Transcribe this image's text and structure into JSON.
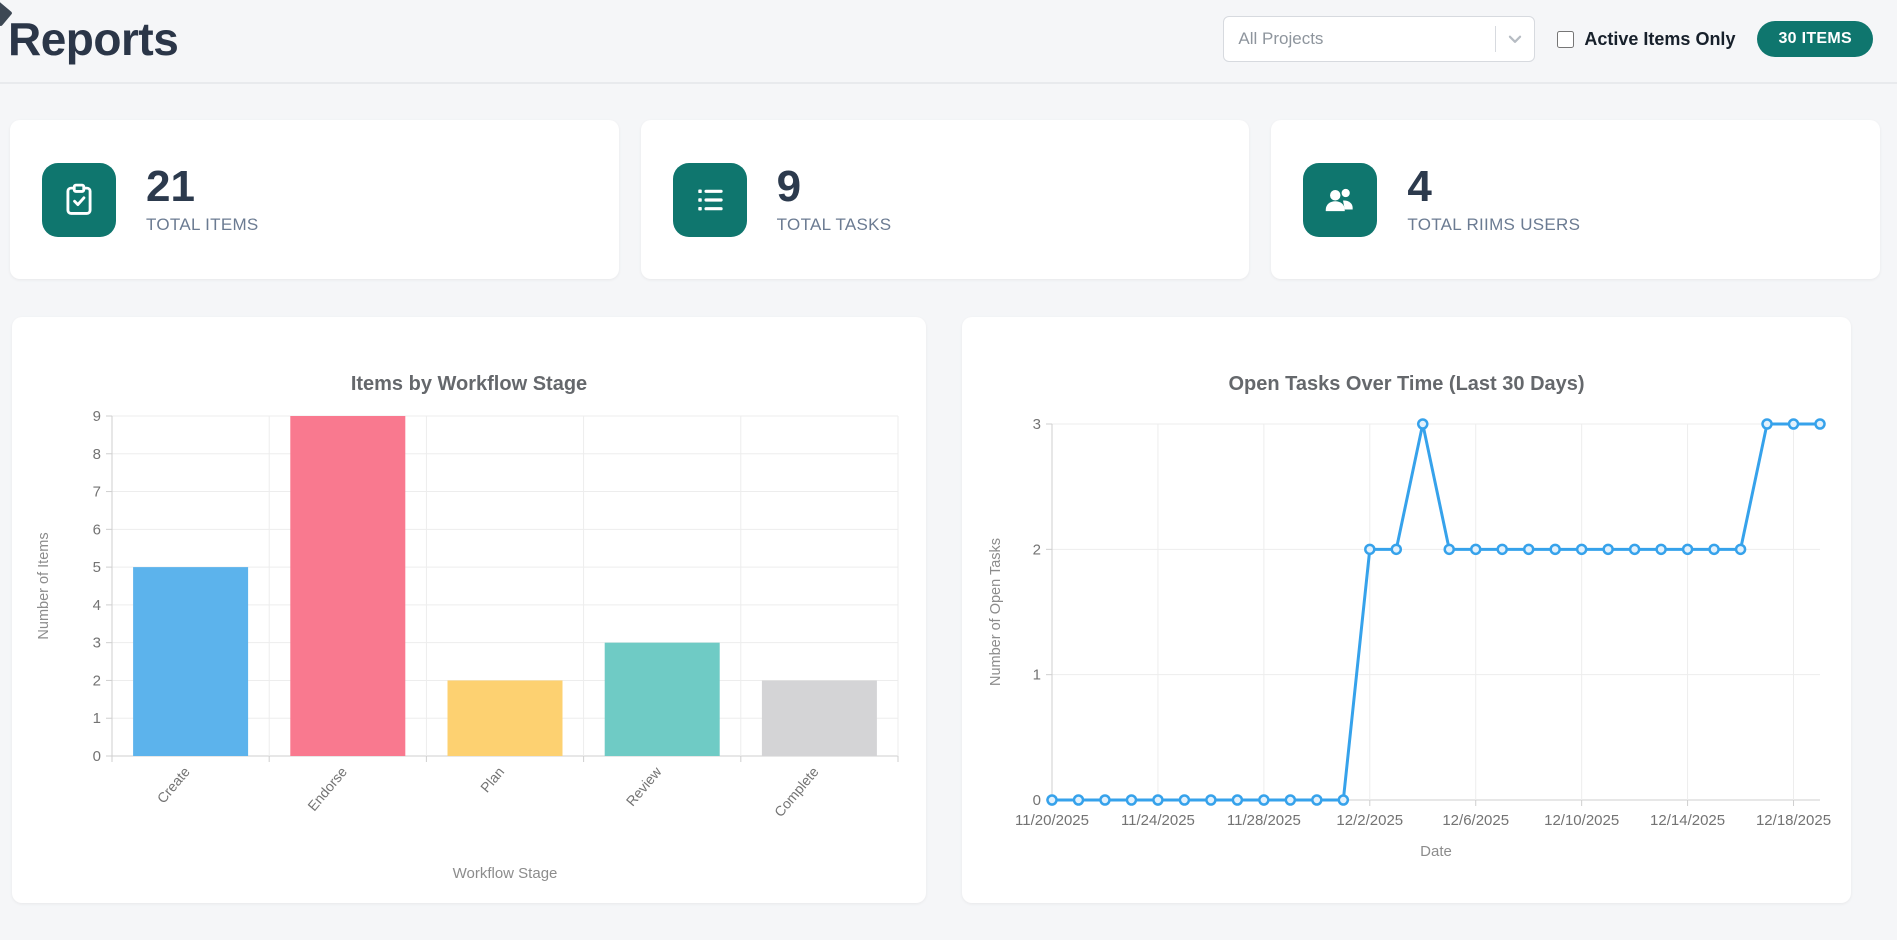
{
  "page": {
    "title": "Reports"
  },
  "header": {
    "project_filter": {
      "placeholder": "All Projects"
    },
    "active_only_label": "Active Items Only",
    "items_badge": "30 ITEMS"
  },
  "stats": [
    {
      "icon": "clipboard-check-icon",
      "value": "21",
      "label": "TOTAL ITEMS"
    },
    {
      "icon": "list-icon",
      "value": "9",
      "label": "TOTAL TASKS"
    },
    {
      "icon": "users-icon",
      "value": "4",
      "label": "TOTAL RIIMS USERS"
    }
  ],
  "colors": {
    "accent_teal": "#0f766e",
    "title_dark": "#2b3648",
    "stat_number": "#2c3a4d",
    "stat_label": "#6b7b92",
    "chart_title_gray": "#65686c",
    "line_blue": "#36a2eb"
  },
  "chart_data": [
    {
      "type": "bar",
      "title": "Items by Workflow Stage",
      "categories": [
        "Create",
        "Endorse",
        "Plan",
        "Review",
        "Complete"
      ],
      "values": [
        5,
        9,
        2,
        3,
        2
      ],
      "bar_colors": [
        "#5cb3ec",
        "#f9798f",
        "#fdd171",
        "#6fcbc5",
        "#d4d4d6"
      ],
      "xlabel": "Workflow Stage",
      "ylabel": "Number of Items",
      "ylim": [
        0,
        9
      ],
      "ytick_step": 1,
      "grid": true,
      "legend": "none"
    },
    {
      "type": "line",
      "title": "Open Tasks Over Time (Last 30 Days)",
      "x": [
        "11/20/2025",
        "11/21/2025",
        "11/22/2025",
        "11/23/2025",
        "11/24/2025",
        "11/25/2025",
        "11/26/2025",
        "11/27/2025",
        "11/28/2025",
        "11/29/2025",
        "11/30/2025",
        "12/1/2025",
        "12/2/2025",
        "12/3/2025",
        "12/4/2025",
        "12/5/2025",
        "12/6/2025",
        "12/7/2025",
        "12/8/2025",
        "12/9/2025",
        "12/10/2025",
        "12/11/2025",
        "12/12/2025",
        "12/13/2025",
        "12/14/2025",
        "12/15/2025",
        "12/16/2025",
        "12/17/2025",
        "12/18/2025",
        "12/19/2025"
      ],
      "values": [
        0,
        0,
        0,
        0,
        0,
        0,
        0,
        0,
        0,
        0,
        0,
        0,
        2,
        2,
        3,
        2,
        2,
        2,
        2,
        2,
        2,
        2,
        2,
        2,
        2,
        2,
        2,
        3,
        3,
        3
      ],
      "xtick_labels": [
        "11/20/2025",
        "11/24/2025",
        "11/28/2025",
        "12/2/2025",
        "12/6/2025",
        "12/10/2025",
        "12/14/2025",
        "12/18/2025"
      ],
      "xtick_every": 4,
      "xlabel": "Date",
      "ylabel": "Number of Open Tasks",
      "ylim": [
        0,
        3
      ],
      "ytick_step": 1,
      "line_color": "#36a2eb",
      "grid": true,
      "legend": "none"
    }
  ]
}
